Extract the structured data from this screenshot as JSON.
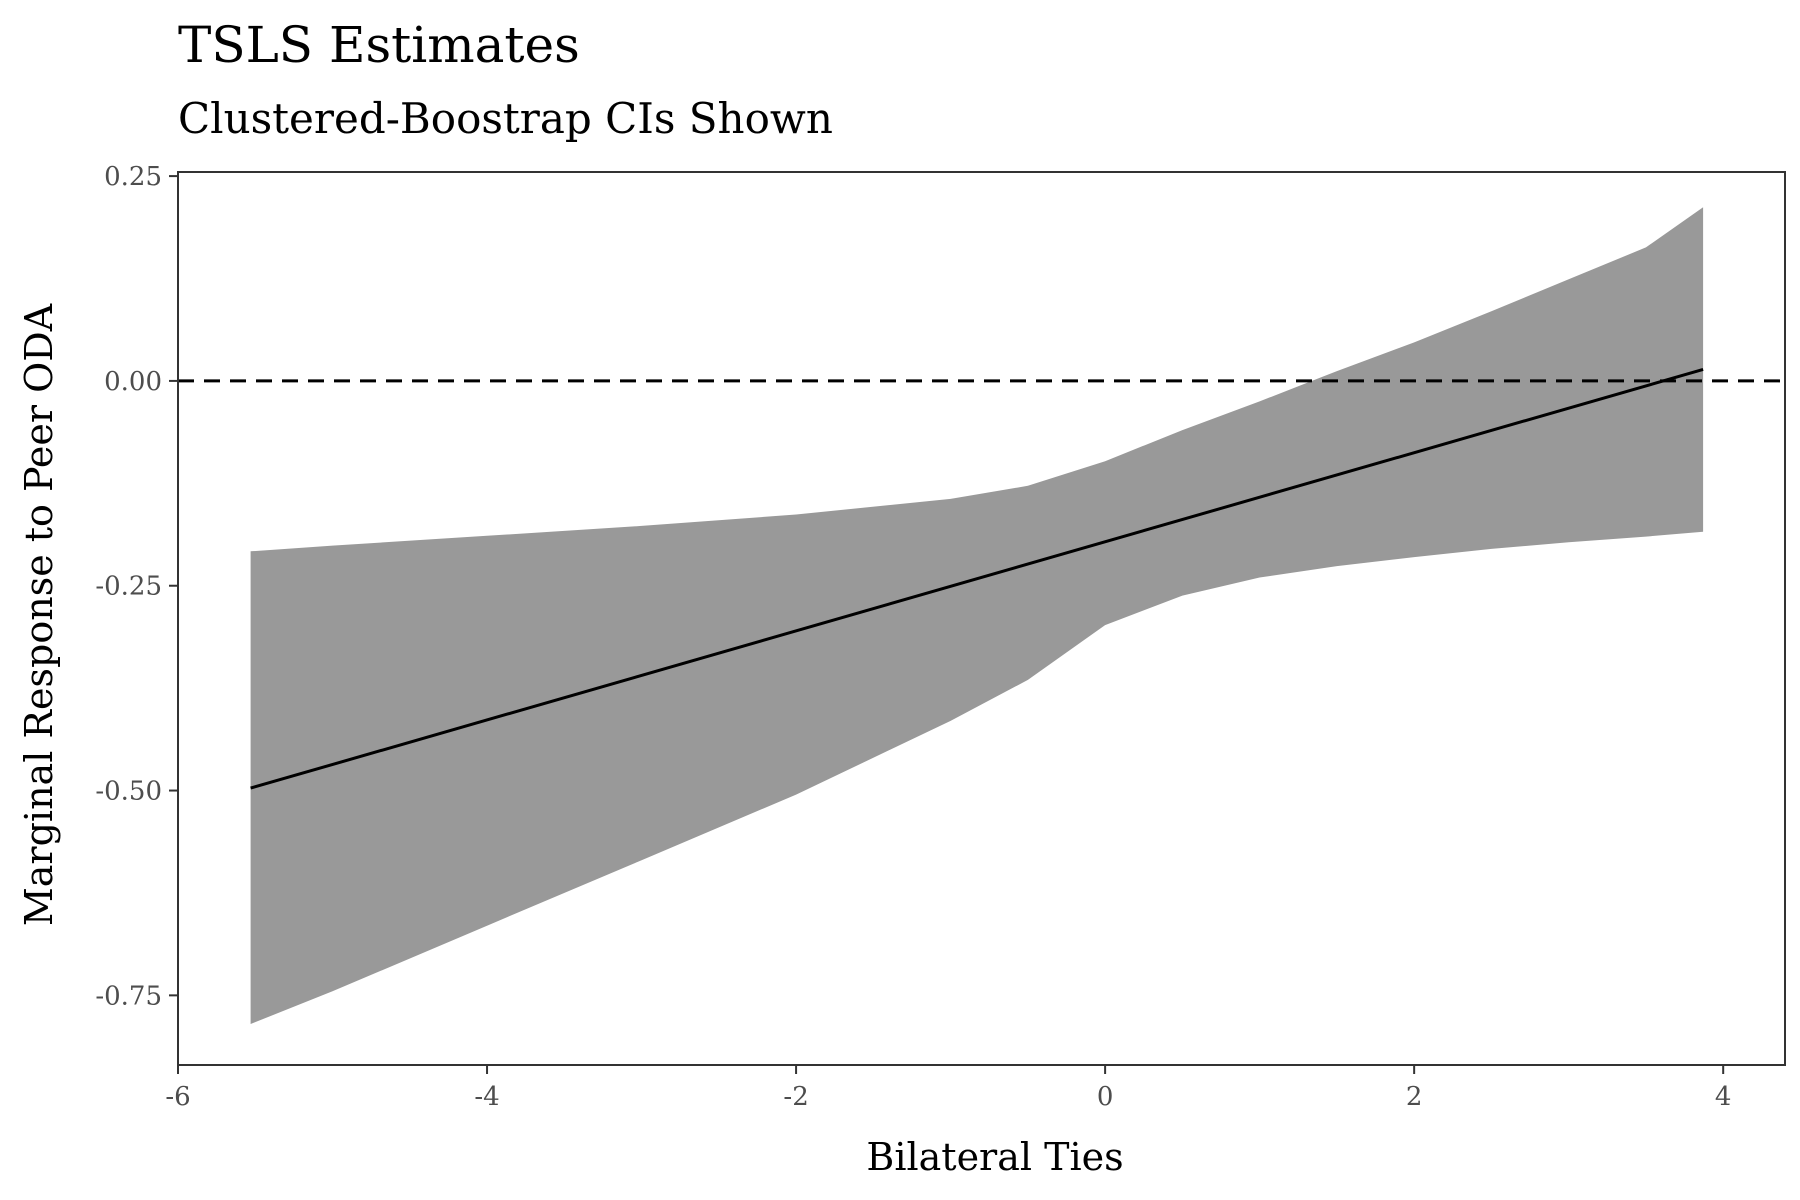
{
  "chart_data": {
    "type": "line",
    "title": "TSLS Estimates",
    "subtitle": "Clustered-Boostrap CIs Shown",
    "xlabel": "Bilateral Ties",
    "ylabel": "Marginal Response to Peer ODA",
    "xlim": [
      -6,
      4.4
    ],
    "ylim": [
      -0.835,
      0.255
    ],
    "x_ticks": [
      -6,
      -4,
      -2,
      0,
      2,
      4
    ],
    "x_tick_labels": [
      "-6",
      "-4",
      "-2",
      "0",
      "2",
      "4"
    ],
    "y_ticks": [
      0.25,
      0.0,
      -0.25,
      -0.5,
      -0.75
    ],
    "y_tick_labels": [
      "0.25",
      "0.00",
      "-0.25",
      "-0.50",
      "-0.75"
    ],
    "grid": false,
    "reference_line": {
      "y": 0.0,
      "style": "dashed",
      "color": "#000000"
    },
    "series": [
      {
        "x": [
          -5.53,
          3.87
        ],
        "values": [
          -0.497,
          0.014
        ],
        "color": "#000000"
      }
    ],
    "ribbon": {
      "color": "#999999",
      "x": [
        -5.53,
        -5.0,
        -4.0,
        -3.0,
        -2.0,
        -1.0,
        -0.5,
        0.0,
        0.5,
        1.0,
        1.5,
        2.0,
        2.5,
        3.0,
        3.5,
        3.87
      ],
      "lower": [
        -0.785,
        -0.745,
        -0.665,
        -0.585,
        -0.505,
        -0.415,
        -0.365,
        -0.298,
        -0.262,
        -0.24,
        -0.226,
        -0.215,
        -0.205,
        -0.197,
        -0.19,
        -0.184
      ],
      "upper": [
        -0.208,
        -0.201,
        -0.189,
        -0.177,
        -0.163,
        -0.144,
        -0.128,
        -0.098,
        -0.06,
        -0.025,
        0.012,
        0.047,
        0.085,
        0.124,
        0.163,
        0.212
      ]
    }
  }
}
